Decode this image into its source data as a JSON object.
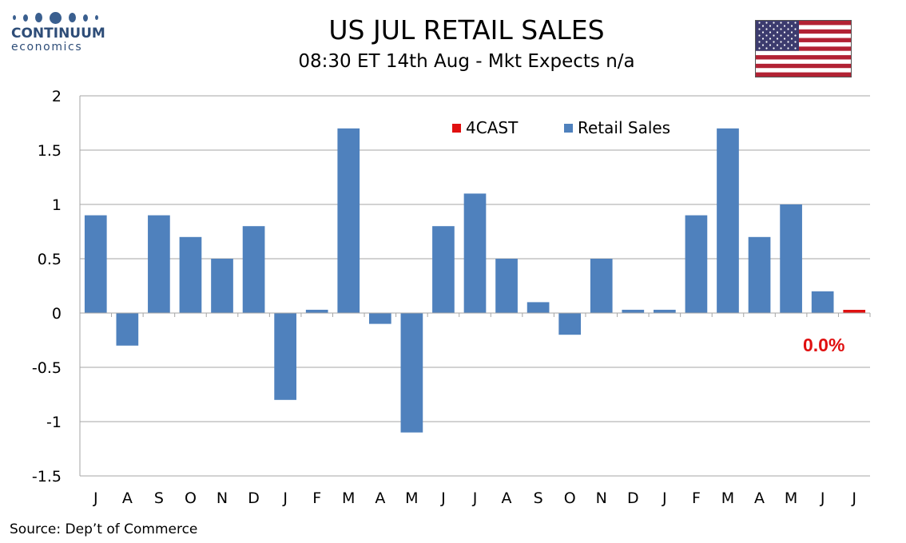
{
  "logo": {
    "word": "CONTINUUM",
    "sub": "economics"
  },
  "header": {
    "title": "US JUL RETAIL SALES",
    "subtitle": "08:30 ET 14th Aug - Mkt Expects n/a"
  },
  "flag_icon": "us-flag-icon",
  "source": "Source: Dep’t of Commerce",
  "colors": {
    "retail": "#4f81bd",
    "forecast": "#e01010",
    "grid": "#a6a6a6",
    "forecast_label": "#e01010"
  },
  "chart_data": {
    "type": "bar",
    "categories": [
      "J",
      "A",
      "S",
      "O",
      "N",
      "D",
      "J",
      "F",
      "M",
      "A",
      "M",
      "J",
      "J",
      "A",
      "S",
      "O",
      "N",
      "D",
      "J",
      "F",
      "M",
      "A",
      "M",
      "J",
      "J"
    ],
    "series": [
      {
        "name": "Retail Sales",
        "values": [
          0.9,
          -0.3,
          0.9,
          0.7,
          0.5,
          0.8,
          -0.8,
          0.03,
          1.7,
          -0.1,
          -1.1,
          0.8,
          1.1,
          0.5,
          0.1,
          -0.2,
          0.5,
          0.03,
          0.03,
          0.9,
          1.7,
          0.7,
          1.0,
          0.2,
          null
        ]
      },
      {
        "name": "4CAST",
        "values": [
          null,
          null,
          null,
          null,
          null,
          null,
          null,
          null,
          null,
          null,
          null,
          null,
          null,
          null,
          null,
          null,
          null,
          null,
          null,
          null,
          null,
          null,
          null,
          null,
          0.0
        ]
      }
    ],
    "ylim": [
      -1.5,
      2
    ],
    "yticks": [
      2,
      1.5,
      1,
      0.5,
      0,
      -0.5,
      -1,
      -1.5
    ],
    "ytick_labels": [
      "2",
      "1.5",
      "1",
      "0.5",
      "0",
      "-0.5",
      "-1",
      "-1.5"
    ],
    "grid": true,
    "legend": {
      "placement": "top-right",
      "entries": [
        "4CAST",
        "Retail Sales"
      ]
    },
    "annotation": {
      "text": "0.0%",
      "category_index": 24
    }
  }
}
